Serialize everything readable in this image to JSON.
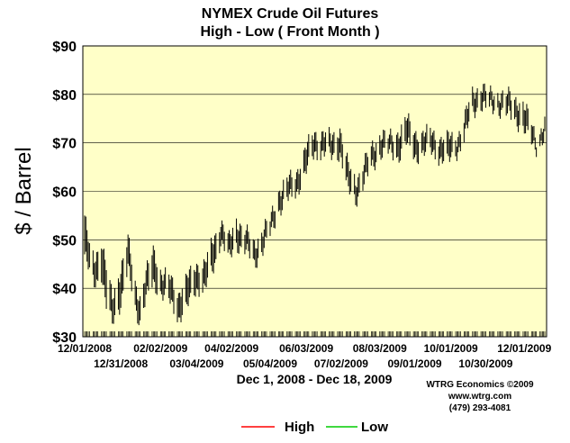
{
  "chart_data": {
    "type": "ohlc",
    "title": "NYMEX Crude Oil Futures",
    "subtitle": "High - Low ( Front Month )",
    "ylabel": "$ / Barrel",
    "xlabel": "Dec 1, 2008 - Dec 18, 2009",
    "ylim": [
      30,
      90
    ],
    "y_ticks": [
      "$30",
      "$40",
      "$50",
      "$60",
      "$70",
      "$80",
      "$90"
    ],
    "x_ticks_upper": [
      "12/01/2008",
      "02/02/2009",
      "04/02/2009",
      "06/03/2009",
      "08/03/2009",
      "10/01/2009",
      "12/01/2009"
    ],
    "x_ticks_lower": [
      "12/31/2008",
      "03/04/2009",
      "05/04/2009",
      "07/02/2009",
      "09/01/2009",
      "10/30/2009"
    ],
    "grid": true,
    "legend": {
      "placement": "bottom",
      "entries": [
        {
          "name": "High",
          "color": "#ff0000"
        },
        {
          "name": "Low",
          "color": "#00cc00"
        }
      ]
    },
    "credits": [
      "WTRG Economics ©2009",
      "www.wtrg.com",
      "(479) 293-4081"
    ],
    "colors": {
      "plot_bg": "#ffffc8",
      "bar": "#000000",
      "grid": "#000000"
    },
    "anchors": [
      {
        "date": "2008-12-01",
        "high": 55,
        "low": 47
      },
      {
        "date": "2008-12-05",
        "high": 48,
        "low": 43
      },
      {
        "date": "2008-12-09",
        "high": 46,
        "low": 41
      },
      {
        "date": "2008-12-15",
        "high": 50,
        "low": 43
      },
      {
        "date": "2008-12-19",
        "high": 44,
        "low": 36
      },
      {
        "date": "2008-12-24",
        "high": 38,
        "low": 33
      },
      {
        "date": "2008-12-31",
        "high": 44,
        "low": 37
      },
      {
        "date": "2009-01-06",
        "high": 50,
        "low": 44
      },
      {
        "date": "2009-01-12",
        "high": 41,
        "low": 36
      },
      {
        "date": "2009-01-16",
        "high": 38,
        "low": 33
      },
      {
        "date": "2009-01-21",
        "high": 43,
        "low": 38
      },
      {
        "date": "2009-01-27",
        "high": 48,
        "low": 41
      },
      {
        "date": "2009-02-03",
        "high": 43,
        "low": 39
      },
      {
        "date": "2009-02-10",
        "high": 42,
        "low": 37
      },
      {
        "date": "2009-02-17",
        "high": 39,
        "low": 34
      },
      {
        "date": "2009-02-24",
        "high": 42,
        "low": 36
      },
      {
        "date": "2009-03-04",
        "high": 45,
        "low": 40
      },
      {
        "date": "2009-03-11",
        "high": 45,
        "low": 40
      },
      {
        "date": "2009-03-18",
        "high": 50,
        "low": 44
      },
      {
        "date": "2009-03-24",
        "high": 54,
        "low": 50
      },
      {
        "date": "2009-03-31",
        "high": 50,
        "low": 46
      },
      {
        "date": "2009-04-06",
        "high": 54,
        "low": 49
      },
      {
        "date": "2009-04-13",
        "high": 52,
        "low": 48
      },
      {
        "date": "2009-04-21",
        "high": 49,
        "low": 45
      },
      {
        "date": "2009-04-28",
        "high": 52,
        "low": 48
      },
      {
        "date": "2009-05-04",
        "high": 54,
        "low": 51
      },
      {
        "date": "2009-05-11",
        "high": 60,
        "low": 56
      },
      {
        "date": "2009-05-18",
        "high": 62,
        "low": 58
      },
      {
        "date": "2009-05-26",
        "high": 64,
        "low": 60
      },
      {
        "date": "2009-06-03",
        "high": 69,
        "low": 64
      },
      {
        "date": "2009-06-10",
        "high": 72,
        "low": 68
      },
      {
        "date": "2009-06-17",
        "high": 72,
        "low": 68
      },
      {
        "date": "2009-06-24",
        "high": 71,
        "low": 67
      },
      {
        "date": "2009-07-01",
        "high": 73,
        "low": 68
      },
      {
        "date": "2009-07-08",
        "high": 65,
        "low": 60
      },
      {
        "date": "2009-07-14",
        "high": 62,
        "low": 58
      },
      {
        "date": "2009-07-21",
        "high": 66,
        "low": 62
      },
      {
        "date": "2009-07-28",
        "high": 69,
        "low": 65
      },
      {
        "date": "2009-08-04",
        "high": 72,
        "low": 68
      },
      {
        "date": "2009-08-11",
        "high": 71,
        "low": 68
      },
      {
        "date": "2009-08-18",
        "high": 72,
        "low": 67
      },
      {
        "date": "2009-08-25",
        "high": 75,
        "low": 70
      },
      {
        "date": "2009-09-01",
        "high": 72,
        "low": 67
      },
      {
        "date": "2009-09-08",
        "high": 72,
        "low": 68
      },
      {
        "date": "2009-09-15",
        "high": 72,
        "low": 68
      },
      {
        "date": "2009-09-22",
        "high": 71,
        "low": 67
      },
      {
        "date": "2009-09-29",
        "high": 71,
        "low": 66
      },
      {
        "date": "2009-10-06",
        "high": 71,
        "low": 68
      },
      {
        "date": "2009-10-12",
        "high": 75,
        "low": 71
      },
      {
        "date": "2009-10-19",
        "high": 80,
        "low": 76
      },
      {
        "date": "2009-10-26",
        "high": 82,
        "low": 78
      },
      {
        "date": "2009-11-02",
        "high": 80,
        "low": 77
      },
      {
        "date": "2009-11-09",
        "high": 80,
        "low": 77
      },
      {
        "date": "2009-11-16",
        "high": 80,
        "low": 76
      },
      {
        "date": "2009-11-23",
        "high": 79,
        "low": 75
      },
      {
        "date": "2009-11-30",
        "high": 78,
        "low": 73
      },
      {
        "date": "2009-12-07",
        "high": 74,
        "low": 70
      },
      {
        "date": "2009-12-11",
        "high": 71,
        "low": 69
      },
      {
        "date": "2009-12-18",
        "high": 74,
        "low": 71
      }
    ]
  }
}
